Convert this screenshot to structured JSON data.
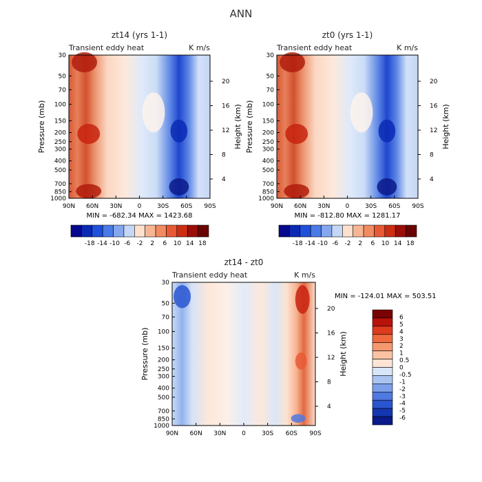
{
  "figure_title": "ANN",
  "chart_data": [
    {
      "type": "heatmap",
      "title": "zt14 (yrs 1-1)",
      "left_string": "Transient eddy heat",
      "right_string": "K m/s",
      "xlabel": "",
      "ylabel": "Pressure (mb)",
      "y2label": "Height (km)",
      "x_ticks": [
        "90N",
        "60N",
        "30N",
        "0",
        "30S",
        "60S",
        "90S"
      ],
      "y_ticks": [
        "30",
        "50",
        "70",
        "100",
        "150",
        "200",
        "250",
        "300",
        "400",
        "500",
        "700",
        "850",
        "1000"
      ],
      "y2_ticks": [
        "20",
        "16",
        "12",
        "8",
        "4"
      ],
      "min_label": "MIN = -682.34",
      "max_label": "MAX = 1423.68",
      "colorbar_labels": [
        "-18",
        "-14",
        "-10",
        "-6",
        "-2",
        "2",
        "6",
        "10",
        "14",
        "18"
      ]
    },
    {
      "type": "heatmap",
      "title": "zt0 (yrs 1-1)",
      "left_string": "Transient eddy heat",
      "right_string": "K m/s",
      "xlabel": "",
      "ylabel": "Pressure (mb)",
      "y2label": "Height (km)",
      "x_ticks": [
        "90N",
        "60N",
        "30N",
        "0",
        "30S",
        "60S",
        "90S"
      ],
      "y_ticks": [
        "30",
        "50",
        "70",
        "100",
        "150",
        "200",
        "250",
        "300",
        "400",
        "500",
        "700",
        "850",
        "1000"
      ],
      "y2_ticks": [
        "20",
        "16",
        "12",
        "8",
        "4"
      ],
      "min_label": "MIN = -812.80",
      "max_label": "MAX = 1281.17",
      "colorbar_labels": [
        "-18",
        "-14",
        "-10",
        "-6",
        "-2",
        "2",
        "6",
        "10",
        "14",
        "18"
      ]
    },
    {
      "type": "heatmap",
      "title": "zt14 - zt0",
      "left_string": "Transient eddy heat",
      "right_string": "K m/s",
      "xlabel": "",
      "ylabel": "Pressure (mb)",
      "y2label": "Height (km)",
      "x_ticks": [
        "90N",
        "60N",
        "30N",
        "0",
        "30S",
        "60S",
        "90S"
      ],
      "y_ticks": [
        "30",
        "50",
        "70",
        "100",
        "150",
        "200",
        "250",
        "300",
        "400",
        "500",
        "700",
        "850",
        "1000"
      ],
      "y2_ticks": [
        "20",
        "16",
        "12",
        "8",
        "4"
      ],
      "min_label": "MIN = -124.01",
      "max_label": "MAX = 503.51",
      "colorbar_labels": [
        "6",
        "5",
        "4",
        "3",
        "2",
        "1",
        "0.5",
        "0",
        "-0.5",
        "-1",
        "-2",
        "-3",
        "-4",
        "-5",
        "-6"
      ]
    }
  ],
  "colors": {
    "colorbar_12": [
      "#08088c",
      "#0a2ab4",
      "#1f50dc",
      "#4a7ae6",
      "#86a7ee",
      "#c4d7f6",
      "#fde1cf",
      "#f8b594",
      "#f28a62",
      "#e85a36",
      "#cc2e14",
      "#9a0e0a",
      "#6a0404"
    ],
    "colorbar_diff": [
      "#770303",
      "#b8130a",
      "#dd3a1e",
      "#ef6a40",
      "#f6986f",
      "#fac2a3",
      "#fde4d4",
      "#d8e6f9",
      "#aac4f2",
      "#7c9fea",
      "#4f78e0",
      "#2a55d0",
      "#1436b0",
      "#0a1a8a"
    ]
  }
}
